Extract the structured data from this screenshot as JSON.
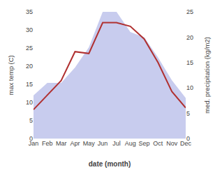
{
  "chart_data": {
    "type": "line",
    "xlabel": "date (month)",
    "ylabel": "max temp (C)",
    "y2label": "med. precipitation (kg/m2)",
    "categories": [
      "Jan",
      "Feb",
      "Mar",
      "Apr",
      "May",
      "Jun",
      "Jul",
      "Aug",
      "Sep",
      "Oct",
      "Nov",
      "Dec"
    ],
    "series": [
      {
        "type": "area",
        "axis": "y2",
        "color": "#c8ccee",
        "values": [
          8.5,
          11,
          11,
          14,
          18,
          25,
          25,
          21,
          20,
          16,
          11.5,
          8
        ]
      },
      {
        "type": "line",
        "color": "#b03030",
        "values": [
          8,
          12,
          16,
          24,
          23.5,
          32,
          32,
          31,
          27.5,
          21,
          13,
          8.5
        ]
      }
    ],
    "ylim": [
      0,
      35
    ],
    "yticks": [
      0,
      5,
      10,
      15,
      20,
      25,
      30,
      35
    ],
    "y2lim": [
      0,
      25
    ],
    "y2ticks": [
      0,
      5,
      10,
      15,
      20,
      25
    ],
    "grid": false
  }
}
